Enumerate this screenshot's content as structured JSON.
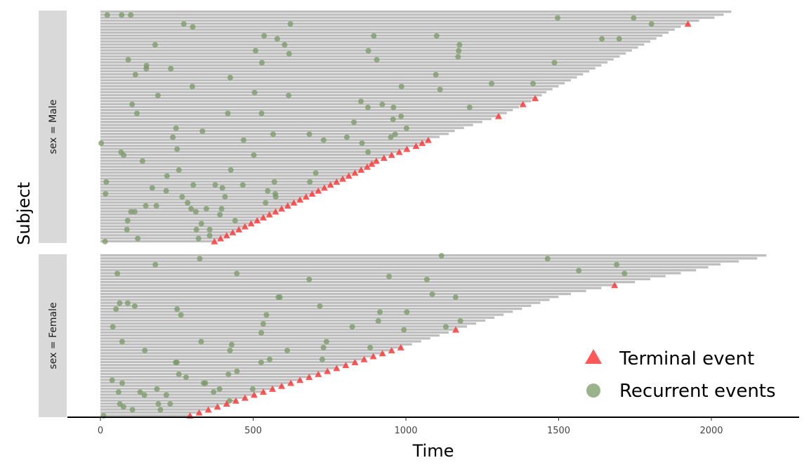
{
  "chart_data": {
    "type": "scatter",
    "subtype": "swimmer-plot-recurrent-events",
    "xlabel": "Time",
    "ylabel": "Subject",
    "xlim": [
      -110,
      2290
    ],
    "xticks": [
      0,
      500,
      1000,
      1500,
      2000
    ],
    "xtick_labels": [
      "0",
      "500",
      "1000",
      "1500",
      "2000"
    ],
    "grid": false,
    "legend_position": "bottom-right",
    "colors": {
      "bar": "#bebebe",
      "terminal": "#ff3b3b",
      "recurrent": "#7a9a66",
      "strip": "#d9d9d9"
    },
    "legend": [
      {
        "label": "Terminal event",
        "marker": "triangle"
      },
      {
        "label": "Recurrent events",
        "marker": "circle"
      }
    ],
    "panels": [
      {
        "label": "sex = Male",
        "n_subjects": 78,
        "follow_up_times": [
          2065,
          2040,
          2010,
          1960,
          1930,
          1900,
          1880,
          1860,
          1840,
          1820,
          1800,
          1780,
          1760,
          1740,
          1720,
          1700,
          1680,
          1660,
          1640,
          1620,
          1600,
          1580,
          1560,
          1540,
          1520,
          1500,
          1480,
          1460,
          1445,
          1430,
          1410,
          1390,
          1370,
          1350,
          1330,
          1310,
          1280,
          1250,
          1220,
          1190,
          1160,
          1140,
          1110,
          1080,
          1060,
          1040,
          1010,
          985,
          960,
          935,
          910,
          895,
          880,
          860,
          840,
          820,
          800,
          780,
          760,
          740,
          720,
          700,
          680,
          660,
          640,
          620,
          600,
          580,
          560,
          540,
          520,
          500,
          480,
          460,
          440,
          420,
          400,
          380
        ]
      },
      {
        "label": "sex = Female",
        "n_subjects": 55,
        "follow_up_times": [
          2180,
          2150,
          2090,
          2030,
          1990,
          1950,
          1900,
          1850,
          1800,
          1750,
          1690,
          1640,
          1590,
          1540,
          1500,
          1470,
          1440,
          1410,
          1380,
          1350,
          1320,
          1290,
          1260,
          1230,
          1200,
          1170,
          1140,
          1110,
          1080,
          1050,
          1020,
          990,
          960,
          930,
          900,
          870,
          840,
          810,
          780,
          750,
          720,
          690,
          660,
          630,
          600,
          570,
          540,
          510,
          480,
          450,
          420,
          390,
          360,
          330,
          300
        ]
      }
    ]
  }
}
